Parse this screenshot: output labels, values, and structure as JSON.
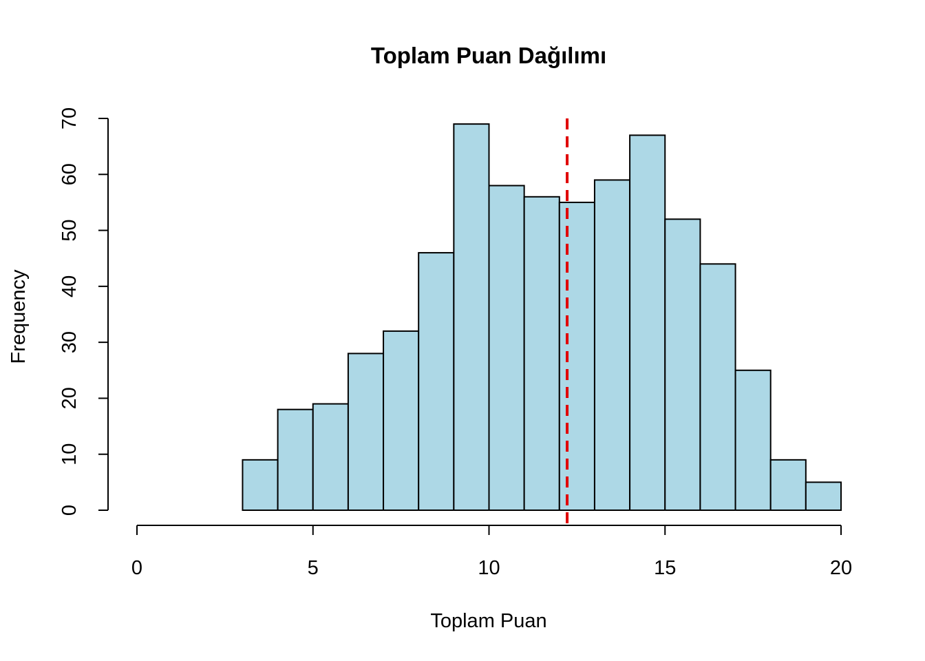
{
  "chart_data": {
    "type": "bar",
    "title": "Toplam Puan Dağılımı",
    "xlabel": "Toplam Puan",
    "ylabel": "Frequency",
    "xlim": [
      0,
      20
    ],
    "ylim": [
      0,
      70
    ],
    "x_ticks": [
      0,
      5,
      10,
      15,
      20
    ],
    "y_ticks": [
      0,
      10,
      20,
      30,
      40,
      50,
      60,
      70
    ],
    "bin_width": 1,
    "bins": [
      {
        "start": 3,
        "end": 4,
        "count": 9
      },
      {
        "start": 4,
        "end": 5,
        "count": 18
      },
      {
        "start": 5,
        "end": 6,
        "count": 19
      },
      {
        "start": 6,
        "end": 7,
        "count": 28
      },
      {
        "start": 7,
        "end": 8,
        "count": 32
      },
      {
        "start": 8,
        "end": 9,
        "count": 46
      },
      {
        "start": 9,
        "end": 10,
        "count": 69
      },
      {
        "start": 10,
        "end": 11,
        "count": 58
      },
      {
        "start": 11,
        "end": 12,
        "count": 56
      },
      {
        "start": 12,
        "end": 13,
        "count": 55
      },
      {
        "start": 13,
        "end": 14,
        "count": 59
      },
      {
        "start": 14,
        "end": 15,
        "count": 67
      },
      {
        "start": 15,
        "end": 16,
        "count": 52
      },
      {
        "start": 16,
        "end": 17,
        "count": 44
      },
      {
        "start": 17,
        "end": 18,
        "count": 25
      },
      {
        "start": 18,
        "end": 19,
        "count": 9
      },
      {
        "start": 19,
        "end": 20,
        "count": 5
      }
    ],
    "reference_line": {
      "x": 12.22,
      "style": "dashed"
    },
    "grid": false,
    "legend": "none",
    "colors": {
      "bar_fill": "#ADD8E6",
      "bar_stroke": "#000000",
      "reference_line": "#E00000"
    }
  }
}
